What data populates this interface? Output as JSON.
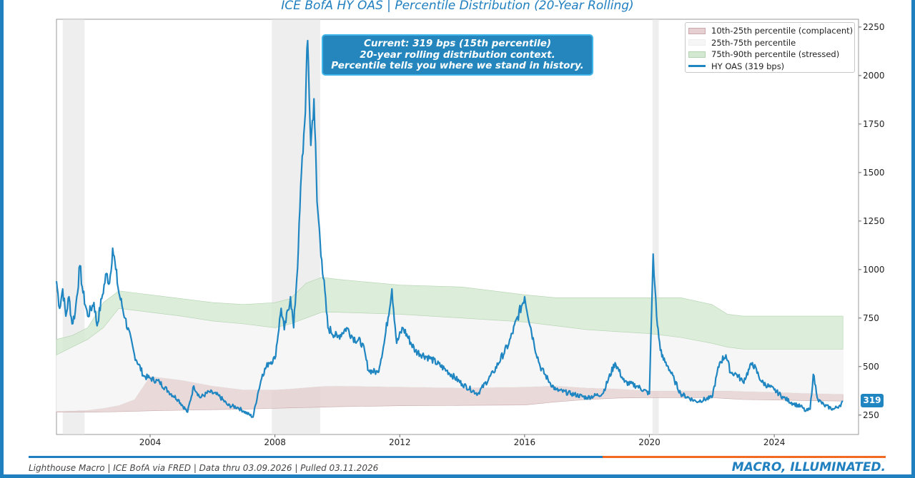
{
  "chart_data": {
    "type": "line",
    "title": "ICE BofA HY OAS | Percentile Distribution (20-Year Rolling)",
    "xlabel": "",
    "ylabel": "",
    "x_ticks": [
      2004,
      2008,
      2012,
      2016,
      2020,
      2024
    ],
    "y_ticks": [
      250,
      500,
      750,
      1000,
      1250,
      1500,
      1750,
      2000,
      2250
    ],
    "xlim": [
      2001.0,
      2026.7
    ],
    "ylim": [
      150,
      2290
    ],
    "y_axis_side": "right",
    "legend_position": "top-right",
    "legend": {
      "items": [
        {
          "label": "10th-25th percentile (complacent)",
          "color": "#e5cfd0",
          "kind": "area"
        },
        {
          "label": "25th-75th percentile",
          "color": "#f6f6f6",
          "kind": "area"
        },
        {
          "label": "75th-90th percentile (stressed)",
          "color": "#d3e9d1",
          "kind": "area"
        },
        {
          "label": "HY OAS (319 bps)",
          "color": "#1f86c2",
          "kind": "line"
        }
      ]
    },
    "annotation": {
      "lines": [
        "Current: 319 bps (15th percentile)",
        "20-year rolling distribution context.",
        "Percentile tells you where we stand in history."
      ]
    },
    "current_label": "319",
    "recessions": [
      [
        2001.2,
        2001.9
      ],
      [
        2007.9,
        2009.45
      ],
      [
        2020.1,
        2020.3
      ]
    ],
    "bands": {
      "x": [
        2001.0,
        2001.5,
        2002.0,
        2002.5,
        2003.0,
        2003.5,
        2004.0,
        2005.0,
        2006.0,
        2007.0,
        2008.0,
        2008.5,
        2009.0,
        2009.5,
        2010.0,
        2012.0,
        2014.0,
        2016.0,
        2017.0,
        2018.0,
        2019.0,
        2020.0,
        2021.0,
        2022.0,
        2022.5,
        2023.0,
        2024.0,
        2025.0,
        2026.2
      ],
      "p10": [
        265,
        265,
        265,
        266,
        268,
        270,
        272,
        275,
        278,
        281,
        285,
        287,
        289,
        291,
        293,
        298,
        300,
        302,
        318,
        330,
        338,
        340,
        340,
        340,
        335,
        330,
        328,
        325,
        322
      ],
      "p25": [
        270,
        272,
        275,
        285,
        300,
        330,
        450,
        430,
        400,
        380,
        380,
        385,
        392,
        398,
        400,
        395,
        390,
        395,
        400,
        390,
        385,
        375,
        375,
        375,
        375,
        372,
        368,
        362,
        358
      ],
      "p75": [
        560,
        600,
        640,
        700,
        800,
        790,
        780,
        760,
        735,
        720,
        700,
        720,
        750,
        780,
        780,
        770,
        750,
        730,
        710,
        690,
        680,
        670,
        650,
        620,
        600,
        590,
        590,
        590,
        590
      ],
      "p90": [
        640,
        660,
        700,
        830,
        890,
        880,
        870,
        850,
        830,
        820,
        830,
        850,
        930,
        960,
        950,
        920,
        910,
        870,
        855,
        855,
        855,
        855,
        855,
        820,
        770,
        760,
        760,
        760,
        760
      ]
    },
    "series": [
      {
        "name": "HY OAS",
        "x": [
          2001.0,
          2001.1,
          2001.2,
          2001.3,
          2001.4,
          2001.5,
          2001.6,
          2001.75,
          2001.85,
          2002.0,
          2002.2,
          2002.3,
          2002.45,
          2002.6,
          2002.7,
          2002.8,
          2002.9,
          2003.0,
          2003.2,
          2003.5,
          2003.8,
          2004.0,
          2004.3,
          2004.6,
          2004.9,
          2005.2,
          2005.4,
          2005.6,
          2005.9,
          2006.2,
          2006.5,
          2006.8,
          2007.0,
          2007.3,
          2007.45,
          2007.6,
          2007.8,
          2008.0,
          2008.2,
          2008.3,
          2008.5,
          2008.6,
          2008.75,
          2008.85,
          2008.95,
          2009.05,
          2009.15,
          2009.25,
          2009.35,
          2009.5,
          2009.7,
          2010.0,
          2010.3,
          2010.5,
          2010.8,
          2011.0,
          2011.3,
          2011.5,
          2011.75,
          2011.9,
          2012.1,
          2012.5,
          2013.0,
          2013.5,
          2014.0,
          2014.5,
          2015.0,
          2015.5,
          2016.0,
          2016.3,
          2016.5,
          2016.8,
          2017.0,
          2017.5,
          2018.0,
          2018.5,
          2018.9,
          2019.2,
          2019.6,
          2020.0,
          2020.12,
          2020.18,
          2020.23,
          2020.3,
          2020.4,
          2020.6,
          2020.8,
          2021.0,
          2021.5,
          2022.0,
          2022.25,
          2022.45,
          2022.6,
          2022.8,
          2023.0,
          2023.3,
          2023.6,
          2024.0,
          2024.3,
          2024.6,
          2024.9,
          2025.0,
          2025.15,
          2025.25,
          2025.4,
          2025.6,
          2025.9,
          2026.1,
          2026.2
        ],
        "values": [
          940,
          800,
          900,
          760,
          860,
          720,
          780,
          1020,
          880,
          760,
          830,
          710,
          850,
          980,
          930,
          1110,
          1000,
          880,
          750,
          560,
          450,
          440,
          420,
          370,
          330,
          265,
          400,
          340,
          370,
          350,
          300,
          290,
          270,
          240,
          360,
          460,
          520,
          540,
          800,
          690,
          860,
          700,
          1100,
          1500,
          1750,
          2180,
          1640,
          1880,
          1350,
          1050,
          700,
          650,
          700,
          650,
          620,
          480,
          470,
          620,
          900,
          620,
          700,
          580,
          540,
          480,
          410,
          360,
          470,
          620,
          860,
          620,
          500,
          420,
          380,
          360,
          340,
          360,
          520,
          420,
          400,
          360,
          1080,
          900,
          760,
          650,
          550,
          500,
          430,
          360,
          320,
          340,
          520,
          560,
          470,
          460,
          420,
          520,
          420,
          380,
          340,
          310,
          290,
          270,
          280,
          460,
          330,
          300,
          280,
          300,
          319
        ]
      }
    ]
  },
  "footer": {
    "source": "Lighthouse Macro | ICE BofA via FRED | Data thru 03.09.2026 | Pulled 03.11.2026",
    "brand": "MACRO, ILLUMINATED."
  },
  "colors": {
    "accent": "#1f7fbf",
    "orange": "#f26a21",
    "series": "#1f86c2",
    "band_low": "#e5cfd0",
    "band_mid": "#f6f6f6",
    "band_high": "#d3e9d1",
    "recession": "#e3e3e3"
  }
}
